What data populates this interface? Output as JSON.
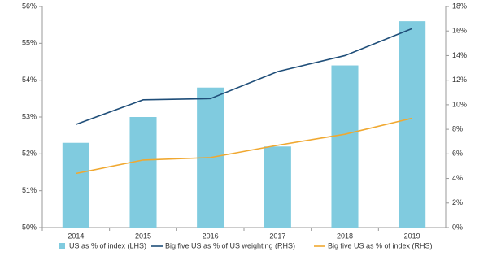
{
  "chart_data": {
    "type": "bar",
    "categories": [
      "2014",
      "2015",
      "2016",
      "2017",
      "2018",
      "2019"
    ],
    "series": [
      {
        "name": "US as % of index (LHS)",
        "type": "bar",
        "color": "#80cbdf",
        "values": [
          52.3,
          53.0,
          53.8,
          52.2,
          54.4,
          55.6
        ]
      },
      {
        "name": "Big five US as % of US weighting (RHS)",
        "type": "line",
        "axis": "y2",
        "color": "#1f4e79",
        "values": [
          8.4,
          10.4,
          10.5,
          12.7,
          14.0,
          16.2
        ]
      },
      {
        "name": "Big five US as % of index (RHS)",
        "type": "line",
        "axis": "y2",
        "color": "#f0a830",
        "values": [
          4.4,
          5.5,
          5.7,
          6.7,
          7.6,
          8.9
        ]
      }
    ],
    "ylim": [
      50,
      56
    ],
    "yticks": [
      {
        "value": 50,
        "label": "50%"
      },
      {
        "value": 51,
        "label": "51%"
      },
      {
        "value": 52,
        "label": "52%"
      },
      {
        "value": 53,
        "label": "53%"
      },
      {
        "value": 54,
        "label": "54%"
      },
      {
        "value": 55,
        "label": "55%"
      },
      {
        "value": 56,
        "label": "56%"
      }
    ],
    "y2lim": [
      0,
      18
    ],
    "y2ticks": [
      {
        "value": 0,
        "label": "0%"
      },
      {
        "value": 2,
        "label": "2%"
      },
      {
        "value": 4,
        "label": "4%"
      },
      {
        "value": 6,
        "label": "6%"
      },
      {
        "value": 8,
        "label": "8%"
      },
      {
        "value": 10,
        "label": "10%"
      },
      {
        "value": 12,
        "label": "12%"
      },
      {
        "value": 14,
        "label": "14%"
      },
      {
        "value": 16,
        "label": "16%"
      },
      {
        "value": 18,
        "label": "18%"
      }
    ],
    "grid": false,
    "legend": "bottom"
  }
}
